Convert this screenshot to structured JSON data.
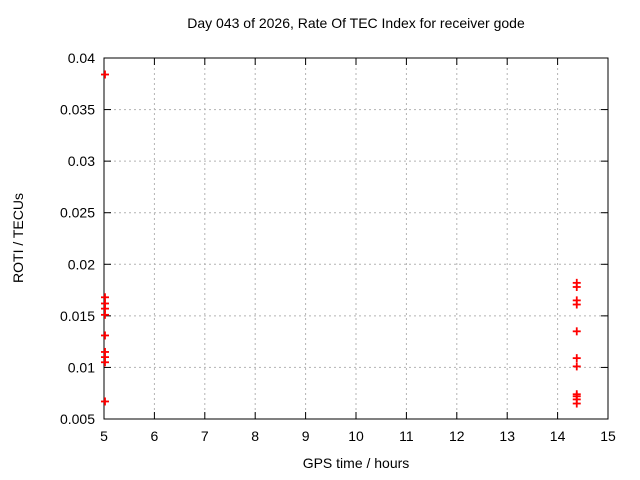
{
  "chart_data": {
    "type": "scatter",
    "title": "Day 043 of 2026, Rate Of TEC Index for receiver gode",
    "xlabel": "GPS time / hours",
    "ylabel": "ROTI / TECUs",
    "xlim": [
      5,
      15
    ],
    "ylim": [
      0.005,
      0.04
    ],
    "x_ticks": [
      5,
      6,
      7,
      8,
      9,
      10,
      11,
      12,
      13,
      14,
      15
    ],
    "x_tick_labels": [
      "5",
      "6",
      "7",
      "8",
      "9",
      "10",
      "11",
      "12",
      "13",
      "14",
      "15"
    ],
    "y_ticks": [
      0.005,
      0.01,
      0.015,
      0.02,
      0.025,
      0.03,
      0.035,
      0.04
    ],
    "y_tick_labels": [
      "0.005",
      "0.01",
      "0.015",
      "0.02",
      "0.025",
      "0.03",
      "0.035",
      "0.04"
    ],
    "grid": true,
    "legend_position": "none",
    "marker": "plus",
    "marker_color": "#ff0000",
    "grid_color": "#b3b3b3",
    "axis_color": "#000000",
    "background_color": "#ffffff",
    "series": [
      {
        "name": "ROTI",
        "points": [
          [
            5.02,
            0.0384
          ],
          [
            5.02,
            0.0168
          ],
          [
            5.02,
            0.0162
          ],
          [
            5.02,
            0.0157
          ],
          [
            5.02,
            0.0151
          ],
          [
            5.02,
            0.0131
          ],
          [
            5.02,
            0.0115
          ],
          [
            5.02,
            0.011
          ],
          [
            5.02,
            0.0105
          ],
          [
            5.02,
            0.0067
          ],
          [
            14.38,
            0.0182
          ],
          [
            14.38,
            0.0178
          ],
          [
            14.38,
            0.0165
          ],
          [
            14.38,
            0.0161
          ],
          [
            14.38,
            0.0135
          ],
          [
            14.38,
            0.0109
          ],
          [
            14.38,
            0.0101
          ],
          [
            14.38,
            0.0074
          ],
          [
            14.38,
            0.0072
          ],
          [
            14.38,
            0.0069
          ],
          [
            14.38,
            0.0065
          ]
        ]
      }
    ]
  }
}
